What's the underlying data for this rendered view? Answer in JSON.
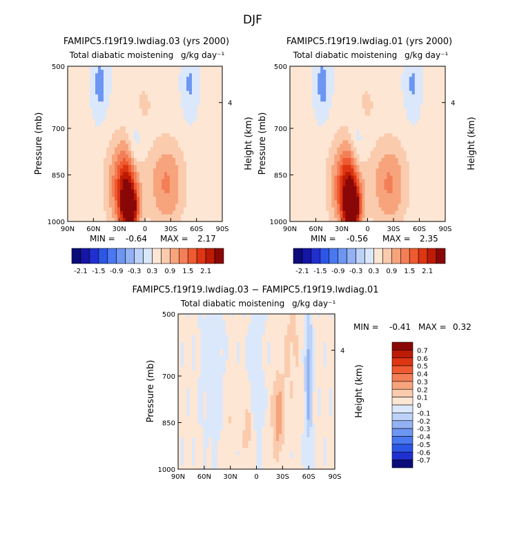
{
  "page": {
    "season_title": "DJF"
  },
  "chart_data": [
    {
      "type": "heatmap",
      "title": "FAMIPC5.f19f19.lwdiag.03 (yrs 2000)",
      "subtitle": "Total diabatic moistening",
      "units": "g/kg day⁻¹",
      "ylabel": "Pressure (mb)",
      "ylabel_right": "Height (km)",
      "x_ticks": [
        "90N",
        "60N",
        "30N",
        "0",
        "30S",
        "60S",
        "90S"
      ],
      "y_ticks": [
        "500",
        "700",
        "850",
        "1000"
      ],
      "y_right_ticks": [
        "4"
      ],
      "ylim": [
        1000,
        500
      ],
      "min_label": "MIN =",
      "min_value": "-0.64",
      "max_label": "MAX =",
      "max_value": "2.17",
      "colorbar_labels": [
        "-2.1",
        "-1.5",
        "-0.9",
        "-0.3",
        "0.3",
        "0.9",
        "1.5",
        "2.1"
      ],
      "features": [
        {
          "lat": 20,
          "p": 900,
          "value": 1.5,
          "sx": 9,
          "sy": 85
        },
        {
          "lat": 18,
          "p": 960,
          "value": 2.1,
          "sx": 6,
          "sy": 40
        },
        {
          "lat": 28,
          "p": 880,
          "value": 0.8,
          "sx": 14,
          "sy": 110
        },
        {
          "lat": -25,
          "p": 880,
          "value": 0.9,
          "sx": 15,
          "sy": 100
        },
        {
          "lat": 12,
          "p": 780,
          "value": -0.5,
          "sx": 6,
          "sy": 80
        },
        {
          "lat": 52,
          "p": 560,
          "value": -0.5,
          "sx": 6,
          "sy": 70
        },
        {
          "lat": -52,
          "p": 560,
          "value": -0.4,
          "sx": 6,
          "sy": 70
        },
        {
          "lat": 2,
          "p": 620,
          "value": 0.3,
          "sx": 10,
          "sy": 60
        }
      ]
    },
    {
      "type": "heatmap",
      "title": "FAMIPC5.f19f19.lwdiag.01 (yrs 2000)",
      "subtitle": "Total diabatic moistening",
      "units": "g/kg day⁻¹",
      "ylabel": "Pressure (mb)",
      "ylabel_right": "Height (km)",
      "x_ticks": [
        "90N",
        "60N",
        "30N",
        "0",
        "30S",
        "60S",
        "90S"
      ],
      "y_ticks": [
        "500",
        "700",
        "850",
        "1000"
      ],
      "y_right_ticks": [
        "4"
      ],
      "ylim": [
        1000,
        500
      ],
      "min_label": "MIN =",
      "min_value": "-0.56",
      "max_label": "MAX =",
      "max_value": "2.35",
      "colorbar_labels": [
        "-2.1",
        "-1.5",
        "-0.9",
        "-0.3",
        "0.3",
        "0.9",
        "1.5",
        "2.1"
      ],
      "features": [
        {
          "lat": 20,
          "p": 900,
          "value": 1.6,
          "sx": 9,
          "sy": 85
        },
        {
          "lat": 18,
          "p": 960,
          "value": 2.3,
          "sx": 6,
          "sy": 40
        },
        {
          "lat": 28,
          "p": 880,
          "value": 0.8,
          "sx": 14,
          "sy": 110
        },
        {
          "lat": -25,
          "p": 880,
          "value": 0.9,
          "sx": 15,
          "sy": 100
        },
        {
          "lat": 12,
          "p": 780,
          "value": -0.5,
          "sx": 6,
          "sy": 80
        },
        {
          "lat": 52,
          "p": 560,
          "value": -0.5,
          "sx": 6,
          "sy": 70
        },
        {
          "lat": -52,
          "p": 560,
          "value": -0.4,
          "sx": 6,
          "sy": 70
        },
        {
          "lat": 2,
          "p": 620,
          "value": 0.3,
          "sx": 10,
          "sy": 60
        }
      ]
    },
    {
      "type": "heatmap",
      "title": "FAMIPC5.f19f19.lwdiag.03 − FAMIPC5.f19f19.lwdiag.01",
      "subtitle": "Total diabatic moistening",
      "units": "g/kg day⁻¹",
      "ylabel": "Pressure (mb)",
      "ylabel_right": "Height (km)",
      "x_ticks": [
        "90N",
        "60N",
        "30N",
        "0",
        "30S",
        "60S",
        "90S"
      ],
      "y_ticks": [
        "500",
        "700",
        "850",
        "1000"
      ],
      "y_right_ticks": [
        "4"
      ],
      "ylim": [
        1000,
        500
      ],
      "min_label": "MIN =",
      "min_value": "-0.41",
      "max_label": "MAX =",
      "max_value": "0.32",
      "colorbar_labels": [
        "0.7",
        "0.6",
        "0.5",
        "0.4",
        "0.3",
        "0.2",
        "0.1",
        "0",
        "-0.1",
        "-0.2",
        "-0.3",
        "-0.4",
        "-0.5",
        "-0.6",
        "-0.7"
      ],
      "features": [
        {
          "lat": -25,
          "p": 830,
          "value": 0.25,
          "sx": 5,
          "sy": 90
        },
        {
          "lat": -60,
          "p": 700,
          "value": -0.3,
          "sx": 3,
          "sy": 160
        },
        {
          "lat": 10,
          "p": 880,
          "value": 0.15,
          "sx": 4,
          "sy": 60
        },
        {
          "lat": 50,
          "p": 650,
          "value": -0.08,
          "sx": 10,
          "sy": 200
        },
        {
          "lat": 30,
          "p": 800,
          "value": 0.1,
          "sx": 4,
          "sy": 120
        },
        {
          "lat": -40,
          "p": 600,
          "value": 0.1,
          "sx": 8,
          "sy": 150
        },
        {
          "lat": 0,
          "p": 650,
          "value": -0.08,
          "sx": 6,
          "sy": 200
        }
      ]
    }
  ]
}
